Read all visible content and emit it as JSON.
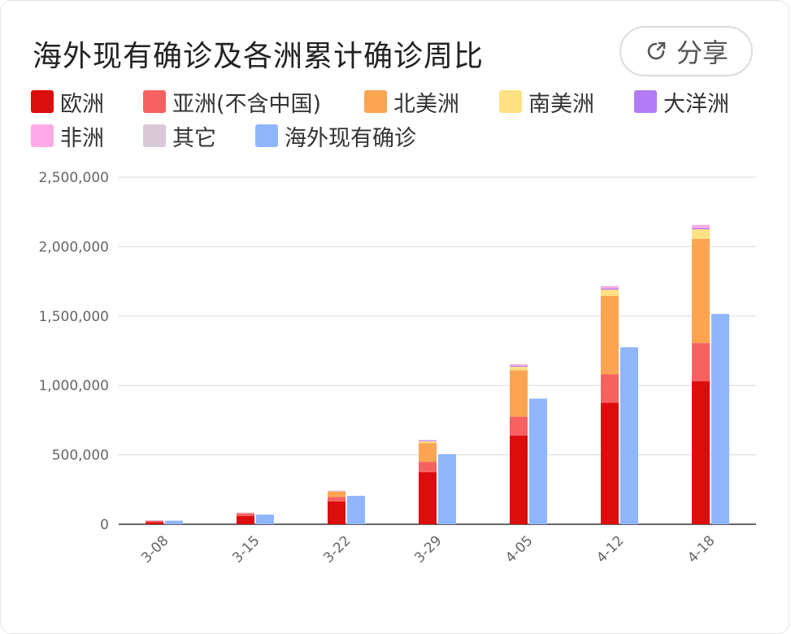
{
  "title": "海外现有确诊及各洲累计确诊周比",
  "share_label": "分享",
  "colors": {
    "europe": "#dc0d0d",
    "asia": "#f76160",
    "north_america": "#fba553",
    "south_america": "#fde182",
    "oceania": "#b17cf5",
    "africa": "#fdaae6",
    "other": "#d9c9d6",
    "overseas": "#8fb6fd"
  },
  "legend": [
    {
      "key": "europe",
      "label": "欧洲"
    },
    {
      "key": "asia",
      "label": "亚洲(不含中国)"
    },
    {
      "key": "north_america",
      "label": "北美洲"
    },
    {
      "key": "south_america",
      "label": "南美洲"
    },
    {
      "key": "oceania",
      "label": "大洋洲"
    },
    {
      "key": "africa",
      "label": "非洲"
    },
    {
      "key": "other",
      "label": "其它"
    },
    {
      "key": "overseas",
      "label": "海外现有确诊"
    }
  ],
  "chart_data": {
    "type": "bar",
    "title": "海外现有确诊及各洲累计确诊周比",
    "categories": [
      "3-08",
      "3-15",
      "3-22",
      "3-29",
      "4-05",
      "4-12",
      "4-18"
    ],
    "ylim": [
      0,
      2500000
    ],
    "yticks": [
      0,
      500000,
      1000000,
      1500000,
      2000000,
      2500000
    ],
    "ytick_labels": [
      "0",
      "500,000",
      "1,000,000",
      "1,500,000",
      "2,000,000",
      "2,500,000"
    ],
    "stacked_series": [
      {
        "key": "europe",
        "name": "欧洲",
        "values": [
          16000,
          60000,
          165000,
          375000,
          640000,
          875000,
          1030000
        ]
      },
      {
        "key": "asia",
        "name": "亚洲(不含中国)",
        "values": [
          11000,
          17000,
          32000,
          75000,
          135000,
          205000,
          275000
        ]
      },
      {
        "key": "north_america",
        "name": "北美洲",
        "values": [
          500,
          5000,
          38000,
          135000,
          335000,
          565000,
          750000
        ]
      },
      {
        "key": "south_america",
        "name": "南美洲",
        "values": [
          100,
          1000,
          4000,
          12000,
          25000,
          45000,
          70000
        ]
      },
      {
        "key": "oceania",
        "name": "大洋洲",
        "values": [
          50,
          300,
          1500,
          5000,
          7000,
          8000,
          8500
        ]
      },
      {
        "key": "africa",
        "name": "非洲",
        "values": [
          100,
          400,
          1500,
          5000,
          10000,
          18000,
          22000
        ]
      },
      {
        "key": "other",
        "name": "其它",
        "values": [
          700,
          700,
          700,
          700,
          700,
          700,
          700
        ]
      }
    ],
    "side_series": {
      "key": "overseas",
      "name": "海外现有确诊",
      "values": [
        26000,
        70000,
        205000,
        505000,
        905000,
        1275000,
        1515000
      ]
    },
    "legend_position": "top",
    "grid": true
  }
}
